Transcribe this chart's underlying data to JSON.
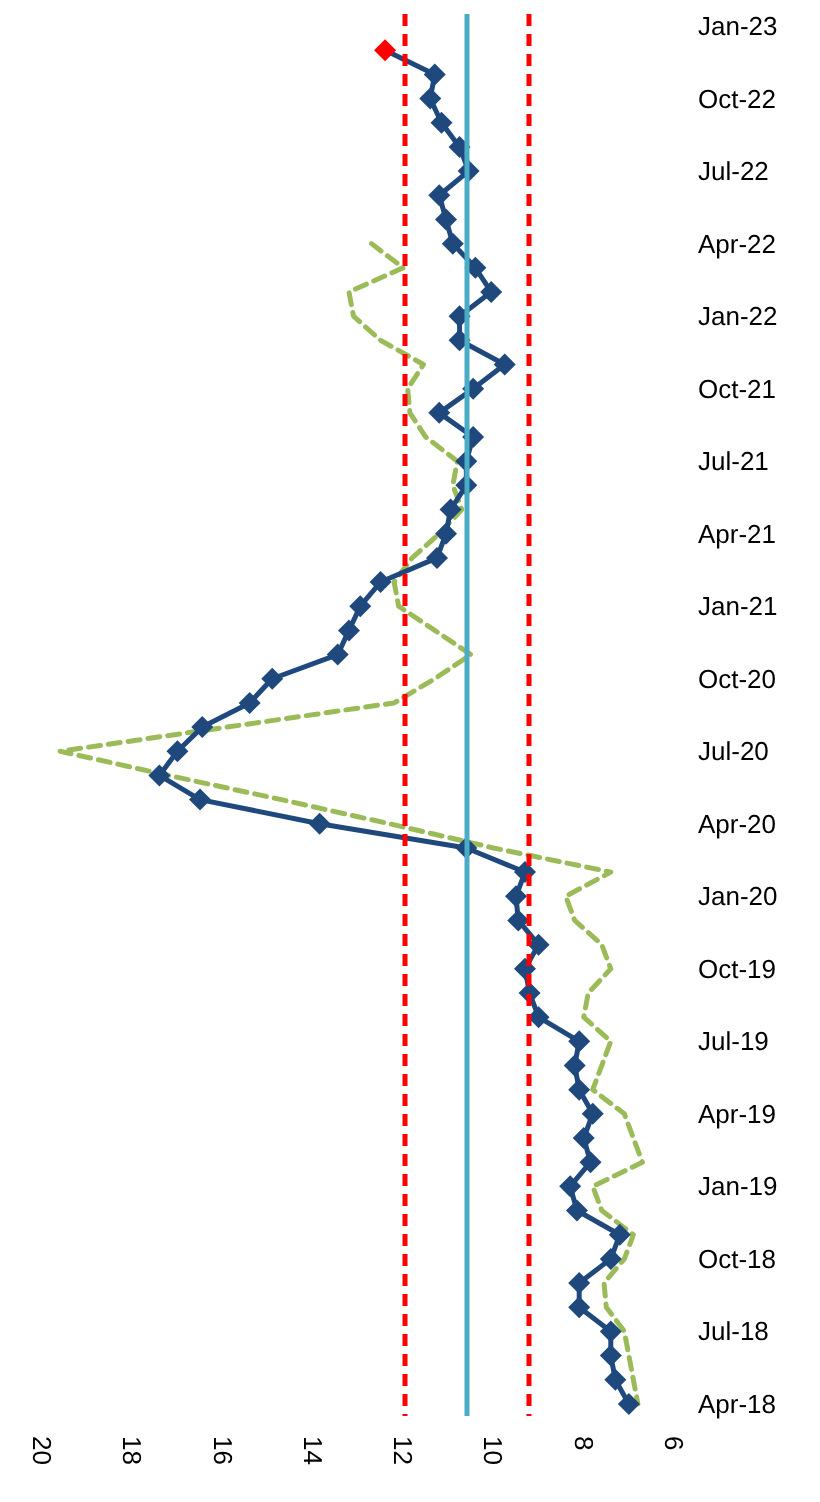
{
  "chart_data": {
    "type": "line",
    "orientation": "horizontal",
    "categories": [
      "Jan-23",
      null,
      null,
      "Oct-22",
      null,
      null,
      "Jul-22",
      null,
      null,
      "Apr-22",
      null,
      null,
      "Jan-22",
      null,
      null,
      "Oct-21",
      null,
      null,
      "Jul-21",
      null,
      null,
      "Apr-21",
      null,
      null,
      "Jan-21",
      null,
      null,
      "Oct-20",
      null,
      null,
      "Jul-20",
      null,
      null,
      "Apr-20",
      null,
      null,
      "Jan-20",
      null,
      null,
      "Oct-19",
      null,
      null,
      "Jul-19",
      null,
      null,
      "Apr-19",
      null,
      null,
      "Jan-19",
      null,
      null,
      "Oct-18",
      null,
      null,
      "Jul-18",
      null,
      null,
      "Apr-18"
    ],
    "series": [
      {
        "color": "#9bbb59",
        "marker": "none",
        "line_style": "dashed",
        "values": [
          null,
          null,
          null,
          null,
          null,
          null,
          null,
          null,
          null,
          12.7,
          12.0,
          13.2,
          13.1,
          12.5,
          11.55,
          11.9,
          11.85,
          11.5,
          10.8,
          10.9,
          10.7,
          11.2,
          11.8,
          12.2,
          12.1,
          11.3,
          10.5,
          11.3,
          12.2,
          15.9,
          19.6,
          17.2,
          14.7,
          12.3,
          10.0,
          7.4,
          8.4,
          8.2,
          7.6,
          7.4,
          7.9,
          8.0,
          7.4,
          7.6,
          7.8,
          7.1,
          6.9,
          6.7,
          7.8,
          7.6,
          6.9,
          7.1,
          7.55,
          7.5,
          7.1,
          7.0,
          6.9,
          6.8
        ]
      },
      {
        "color": "#1f497d",
        "marker": "diamond",
        "line_style": "solid",
        "values": [
          null,
          12.4,
          11.3,
          11.4,
          11.15,
          10.75,
          10.55,
          11.2,
          11.05,
          10.9,
          10.4,
          10.05,
          10.75,
          10.75,
          9.75,
          10.45,
          11.2,
          10.45,
          10.6,
          10.6,
          10.95,
          11.05,
          11.25,
          12.5,
          12.95,
          13.2,
          13.45,
          14.9,
          15.4,
          16.45,
          17.0,
          17.4,
          16.5,
          13.85,
          10.6,
          9.3,
          9.5,
          9.45,
          9.0,
          9.3,
          9.2,
          9.0,
          8.1,
          8.2,
          8.1,
          7.8,
          8.0,
          7.85,
          8.3,
          8.15,
          7.2,
          7.4,
          8.1,
          8.1,
          7.4,
          7.4,
          7.3,
          7.0
        ],
        "colors": [
          "#1f497d",
          "#ff0000",
          "#1f497d",
          "#1f497d",
          "#1f497d",
          "#1f497d",
          "#1f497d",
          "#1f497d",
          "#1f497d",
          "#1f497d",
          "#1f497d",
          "#1f497d",
          "#1f497d",
          "#1f497d",
          "#1f497d",
          "#1f497d",
          "#1f497d",
          "#1f497d",
          "#1f497d",
          "#1f497d",
          "#1f497d",
          "#1f497d",
          "#1f497d",
          "#1f497d",
          "#1f497d",
          "#1f497d",
          "#1f497d",
          "#1f497d",
          "#1f497d",
          "#1f497d",
          "#1f497d",
          "#1f497d",
          "#1f497d",
          "#1f497d",
          "#1f497d",
          "#1f497d",
          "#1f497d",
          "#1f497d",
          "#1f497d",
          "#1f497d",
          "#1f497d",
          "#1f497d",
          "#1f497d",
          "#1f497d",
          "#1f497d",
          "#1f497d",
          "#1f497d",
          "#1f497d",
          "#1f497d",
          "#1f497d",
          "#1f497d",
          "#1f497d",
          "#1f497d",
          "#1f497d",
          "#1f497d",
          "#1f497d",
          "#1f497d",
          "#1f497d"
        ]
      }
    ],
    "xlim": [
      20,
      6
    ],
    "xticks": [
      20,
      18,
      16,
      14,
      12,
      10,
      8,
      6
    ],
    "grid": false,
    "ref_lines": [
      {
        "axis": "x",
        "value": 11.95,
        "color": "#ff0000",
        "line_style": "dashed"
      },
      {
        "axis": "x",
        "value": 10.58,
        "color": "#4bacc6",
        "line_style": "solid"
      },
      {
        "axis": "x",
        "value": 9.21,
        "color": "#ff0000",
        "line_style": "dashed"
      }
    ]
  }
}
